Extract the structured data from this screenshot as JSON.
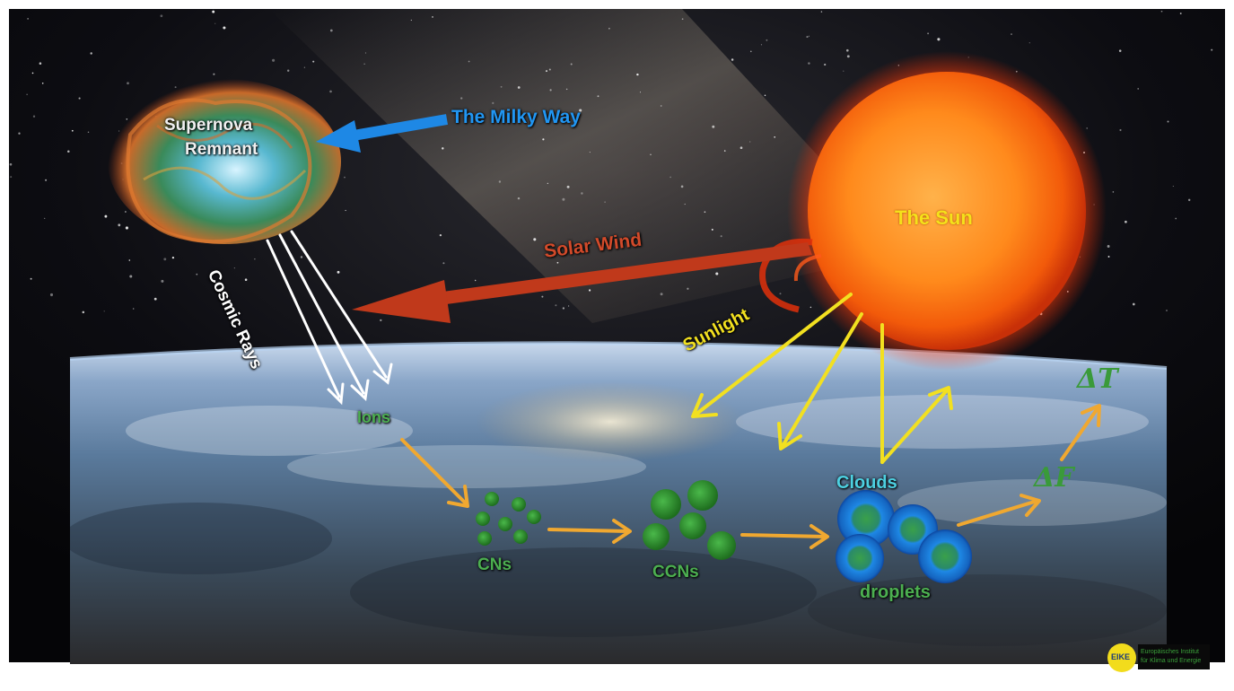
{
  "labels": {
    "supernova_line1": "Supernova",
    "supernova_line2": "Remnant",
    "milky_way": "The Milky Way",
    "sun": "The Sun",
    "solar_wind": "Solar Wind",
    "cosmic_rays": "Cosmic Rays",
    "sunlight": "Sunlight",
    "ions": "Ions",
    "cns": "CNs",
    "ccns": "CCNs",
    "clouds": "Clouds",
    "droplets": "droplets",
    "delta_f": "ΔF",
    "delta_t": "ΔT",
    "logo_text": "EIKE",
    "logo_caption_line1": "Europäisches Institut",
    "logo_caption_line2": "für Klima und Energie"
  },
  "colors": {
    "milky_way_arrow": "#1e88e5",
    "milky_way_text": "#2196f3",
    "solar_wind_arrow": "#c0391b",
    "solar_wind_text": "#d24a2a",
    "sun_text": "#f5e11a",
    "sunlight_arrow": "#f2e020",
    "cosmic_rays_arrow": "#ffffff",
    "process_arrow": "#f0a830",
    "green_text": "#4caf50",
    "cloud_text": "#4dd0e1",
    "particle_green": "#2e8b2e",
    "droplet_blue": "#1e7fd8",
    "logo_yellow": "#f2dc1c"
  }
}
